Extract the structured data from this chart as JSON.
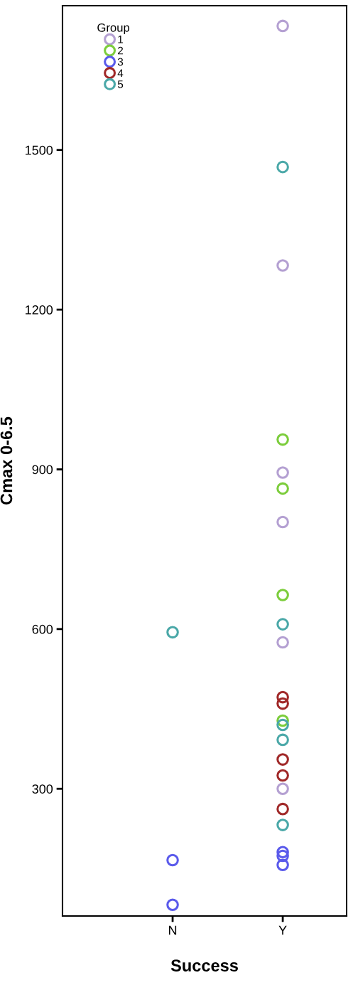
{
  "chart_data": {
    "type": "scatter",
    "xlabel": "Success",
    "ylabel": "Cmax 0-6.5",
    "legend_title": "Group",
    "legend": "top left",
    "marker": "circle",
    "grid": false,
    "categories": [
      "N",
      "Y"
    ],
    "ylim": [
      61,
      1771
    ],
    "yticks": [
      300,
      600,
      900,
      1200,
      1500
    ],
    "series": [
      {
        "name": "1",
        "color": "#b4a0d2",
        "x": [
          "Y",
          "Y",
          "Y",
          "Y",
          "Y",
          "Y"
        ],
        "values": [
          1733,
          1283,
          894,
          801,
          575,
          300
        ]
      },
      {
        "name": "2",
        "color": "#7ccd3c",
        "x": [
          "Y",
          "Y",
          "Y",
          "Y"
        ],
        "values": [
          956,
          864,
          664,
          428
        ]
      },
      {
        "name": "3",
        "color": "#5a5aeb",
        "x": [
          "N",
          "N",
          "Y",
          "Y",
          "Y"
        ],
        "values": [
          166,
          82,
          181,
          174,
          157
        ]
      },
      {
        "name": "4",
        "color": "#a02828",
        "x": [
          "Y",
          "Y",
          "Y",
          "Y",
          "Y"
        ],
        "values": [
          472,
          460,
          355,
          325,
          262
        ]
      },
      {
        "name": "5",
        "color": "#4aa8a8",
        "x": [
          "N",
          "Y",
          "Y",
          "Y",
          "Y",
          "Y"
        ],
        "values": [
          594,
          1468,
          609,
          420,
          392,
          232
        ]
      }
    ]
  }
}
